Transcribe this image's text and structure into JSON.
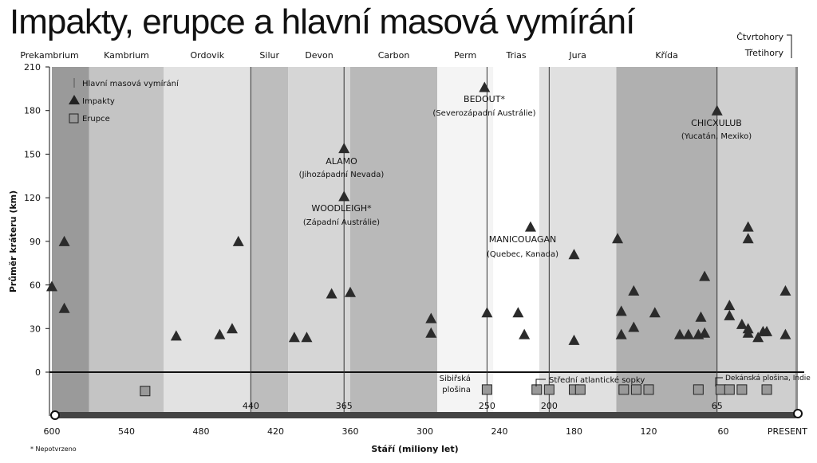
{
  "title": "Impakty, erupce a hlavní masová vymírání",
  "footnote": "* Nepotvrzeno",
  "chart_data": {
    "type": "scatter",
    "title": "Impakty, erupce a hlavní masová vymírání",
    "xlabel": "Stáří (miliony let)",
    "ylabel": "Průměr kráteru (km)",
    "xlim": [
      600,
      0
    ],
    "ylim": [
      -30,
      210
    ],
    "x_ticks": [
      "600",
      "540",
      "480",
      "420",
      "360",
      "300",
      "240",
      "180",
      "120",
      "60",
      "PRESENT"
    ],
    "y_ticks": [
      0,
      30,
      60,
      90,
      120,
      150,
      180,
      210
    ],
    "periods": [
      {
        "name": "Prekambrium",
        "start": 600,
        "end": 570
      },
      {
        "name": "Kambrium",
        "start": 570,
        "end": 510
      },
      {
        "name": "Ordovik",
        "start": 510,
        "end": 440
      },
      {
        "name": "Silur",
        "start": 440,
        "end": 410
      },
      {
        "name": "Devon",
        "start": 410,
        "end": 360
      },
      {
        "name": "Carbon",
        "start": 360,
        "end": 290
      },
      {
        "name": "Perm",
        "start": 290,
        "end": 245
      },
      {
        "name": "Trias",
        "start": 245,
        "end": 208
      },
      {
        "name": "Jura",
        "start": 208,
        "end": 146
      },
      {
        "name": "Křída",
        "start": 146,
        "end": 65
      },
      {
        "name": "Třetihory",
        "start": 65,
        "end": 2
      },
      {
        "name": "Čtvrtohory",
        "start": 2,
        "end": 0
      }
    ],
    "extinctions": [
      {
        "age": 440,
        "label": "440"
      },
      {
        "age": 365,
        "label": "365"
      },
      {
        "age": 250,
        "label": "250"
      },
      {
        "age": 200,
        "label": "200"
      },
      {
        "age": 65,
        "label": "65"
      }
    ],
    "legend": {
      "position": "top-left",
      "entries": [
        "Hlavní masová vymírání",
        "Impakty",
        "Erupce"
      ]
    },
    "series": [
      {
        "name": "Impakty",
        "points": [
          [
            600,
            59
          ],
          [
            590,
            90
          ],
          [
            590,
            44
          ],
          [
            500,
            25
          ],
          [
            465,
            26
          ],
          [
            455,
            30
          ],
          [
            450,
            90
          ],
          [
            405,
            24
          ],
          [
            395,
            24
          ],
          [
            375,
            54
          ],
          [
            365,
            121
          ],
          [
            365,
            154
          ],
          [
            360,
            55
          ],
          [
            295,
            37
          ],
          [
            295,
            27
          ],
          [
            252,
            196
          ],
          [
            250,
            41
          ],
          [
            225,
            41
          ],
          [
            220,
            26
          ],
          [
            215,
            100
          ],
          [
            180,
            81
          ],
          [
            180,
            22
          ],
          [
            145,
            92
          ],
          [
            142,
            42
          ],
          [
            142,
            26
          ],
          [
            132,
            56
          ],
          [
            132,
            31
          ],
          [
            115,
            41
          ],
          [
            95,
            26
          ],
          [
            88,
            26
          ],
          [
            80,
            26
          ],
          [
            78,
            38
          ],
          [
            75,
            27
          ],
          [
            75,
            66
          ],
          [
            65,
            180
          ],
          [
            55,
            46
          ],
          [
            55,
            39
          ],
          [
            45,
            33
          ],
          [
            40,
            100
          ],
          [
            40,
            92
          ],
          [
            40,
            30
          ],
          [
            40,
            27
          ],
          [
            32,
            24
          ],
          [
            28,
            28
          ],
          [
            25,
            28
          ],
          [
            10,
            56
          ],
          [
            10,
            26
          ]
        ]
      },
      {
        "name": "Erupce",
        "points": [
          [
            525,
            -13
          ],
          [
            250,
            -12
          ],
          [
            210,
            -12
          ],
          [
            200,
            -12
          ],
          [
            180,
            -12
          ],
          [
            175,
            -12
          ],
          [
            140,
            -12
          ],
          [
            130,
            -12
          ],
          [
            120,
            -12
          ],
          [
            80,
            -12
          ],
          [
            62,
            -12
          ],
          [
            55,
            -12
          ],
          [
            45,
            -12
          ],
          [
            25,
            -12
          ]
        ]
      }
    ],
    "annotations": [
      {
        "name": "ALAMO",
        "detail": "(Jihozápadní Nevada)"
      },
      {
        "name": "WOODLEIGH*",
        "detail": "(Západní Austrálie)"
      },
      {
        "name": "BEDOUT*",
        "detail": "(Severozápadní Austrálie)"
      },
      {
        "name": "MANICOUAGAN",
        "detail": "(Quebec, Kanada)"
      },
      {
        "name": "CHICXULUB",
        "detail": "(Yucatán, Mexiko)"
      }
    ],
    "eruption_labels": [
      "Sibiřská plošina",
      "Střední atlantické sopky",
      "Dekánská plošina, Indie"
    ]
  }
}
